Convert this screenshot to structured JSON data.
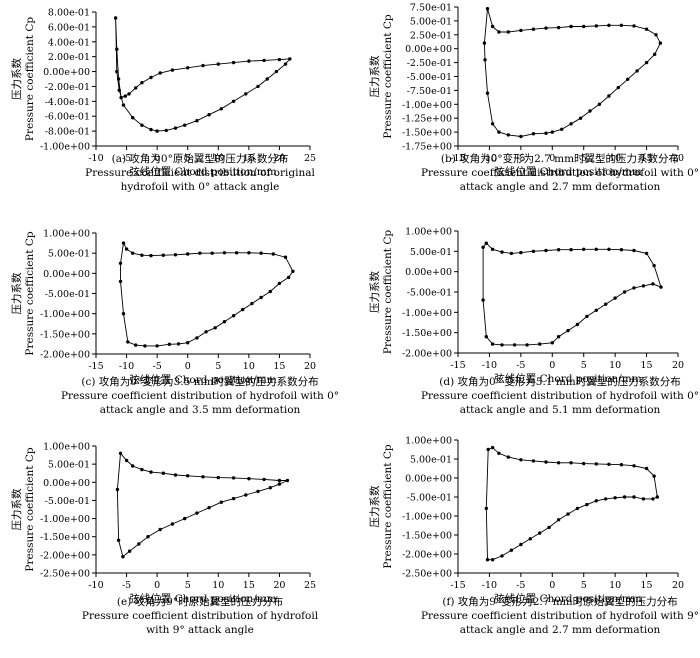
{
  "chart_data": [
    {
      "id": "a",
      "type": "scatter",
      "xlabel": "弦线位置 Chord position/mm",
      "ylabel_cn": "压力系数",
      "ylabel_en": "Pressure coefficient Cp",
      "xlim": [
        -10,
        25
      ],
      "ylim": [
        -1.0,
        0.8
      ],
      "x_ticks": [
        "-10",
        "-5",
        "0",
        "5",
        "10",
        "15",
        "20",
        "25"
      ],
      "y_ticks": [
        "8.00e-01",
        "6.00e-01",
        "4.00e-01",
        "2.00e-01",
        "0.00e+00",
        "-2.00e-01",
        "-4.00e-01",
        "-6.00e-01",
        "-8.00e-01",
        "-1.00e+00"
      ],
      "caption": [
        "(a) 攻角为0°原始翼型的压力系数分布",
        "Pressure coefficient distribution of original",
        "hydrofoil with 0° attack angle"
      ],
      "x": [
        -6.8,
        -6.6,
        -6.3,
        -5.9,
        -5.2,
        -4.6,
        -3.5,
        -2.5,
        -1.0,
        0.5,
        2.5,
        5.0,
        7.5,
        10.0,
        12.5,
        15.0,
        17.5,
        20.0,
        21.7,
        21.0,
        19.5,
        18.0,
        16.5,
        14.5,
        12.5,
        10.5,
        8.5,
        6.5,
        4.5,
        3.0,
        1.5,
        0.0,
        -1.0,
        -2.5,
        -4.0,
        -5.5,
        -6.2,
        -6.6
      ],
      "y": [
        0.72,
        0.3,
        -0.1,
        -0.35,
        -0.33,
        -0.3,
        -0.22,
        -0.15,
        -0.08,
        -0.02,
        0.02,
        0.05,
        0.08,
        0.1,
        0.12,
        0.14,
        0.15,
        0.16,
        0.17,
        0.1,
        0.0,
        -0.1,
        -0.2,
        -0.3,
        -0.4,
        -0.5,
        -0.58,
        -0.66,
        -0.72,
        -0.76,
        -0.79,
        -0.8,
        -0.78,
        -0.72,
        -0.62,
        -0.45,
        -0.25,
        0.0
      ]
    },
    {
      "id": "b",
      "type": "scatter",
      "xlabel": "弦线位置 Chord position/mm",
      "ylabel_cn": "压力系数",
      "ylabel_en": "Pressure coefficient Cp",
      "xlim": [
        -15,
        20
      ],
      "ylim": [
        -1.75,
        0.75
      ],
      "x_ticks": [
        "-15",
        "-10",
        "-5",
        "0",
        "5",
        "10",
        "15",
        "20"
      ],
      "y_ticks": [
        "7.50e-01",
        "5.00e-01",
        "2.50e-01",
        "0.00e+00",
        "-2.50e-01",
        "-5.00e-01",
        "-7.50e-01",
        "-1.00e+00",
        "-1.25e+00",
        "-1.50e+00",
        "-1.75e+00"
      ],
      "caption": [
        "(b) 攻角为0°变形为2.7 mm时翼型的压力系数分布",
        "Pressure coefficient distribution of hydrofoil with 0°",
        "attack angle and 2.7 mm deformation"
      ],
      "x": [
        -10.8,
        -10.3,
        -9.5,
        -8.5,
        -7.0,
        -5.0,
        -3.0,
        -1.0,
        1.0,
        3.0,
        5.0,
        7.0,
        9.0,
        11.0,
        13.0,
        15.0,
        16.5,
        17.2,
        16.3,
        15.0,
        13.5,
        12.0,
        10.5,
        9.0,
        7.5,
        6.0,
        4.5,
        3.0,
        1.5,
        0.0,
        -1.0,
        -3.0,
        -5.0,
        -7.0,
        -8.5,
        -9.5,
        -10.3,
        -10.7
      ],
      "y": [
        0.1,
        0.72,
        0.4,
        0.3,
        0.3,
        0.33,
        0.35,
        0.37,
        0.38,
        0.4,
        0.4,
        0.41,
        0.42,
        0.42,
        0.41,
        0.35,
        0.25,
        0.1,
        -0.1,
        -0.25,
        -0.4,
        -0.55,
        -0.7,
        -0.85,
        -1.0,
        -1.12,
        -1.25,
        -1.35,
        -1.45,
        -1.5,
        -1.52,
        -1.53,
        -1.58,
        -1.55,
        -1.5,
        -1.35,
        -0.8,
        -0.2
      ]
    },
    {
      "id": "c",
      "type": "scatter",
      "xlabel": "弦线位置 Chord position/mm",
      "ylabel_cn": "压力系数",
      "ylabel_en": "Pressure coefficient Cp",
      "xlim": [
        -15,
        20
      ],
      "ylim": [
        -2.0,
        1.0
      ],
      "x_ticks": [
        "-15",
        "-10",
        "-5",
        "0",
        "5",
        "10",
        "15",
        "20"
      ],
      "y_ticks": [
        "1.00e+00",
        "5.00e-01",
        "0.00e+00",
        "-5.00e-01",
        "-1.00e+00",
        "-1.50e+00",
        "-2.00e+00"
      ],
      "caption": [
        "(c) 攻角为0°变形为3.5 mm时翼型的压力系数分布",
        "Pressure coefficient distribution of hydrofoil with 0°",
        "attack angle and 3.5 mm deformation"
      ],
      "x": [
        -11.0,
        -10.5,
        -10.0,
        -9.0,
        -7.5,
        -6.0,
        -4.0,
        -2.0,
        0.0,
        2.0,
        4.0,
        6.0,
        8.0,
        10.0,
        12.0,
        14.0,
        16.0,
        17.2,
        16.5,
        15.0,
        13.5,
        12.0,
        10.5,
        9.0,
        7.5,
        6.0,
        4.5,
        3.0,
        1.5,
        0.0,
        -1.5,
        -3.0,
        -5.0,
        -7.0,
        -8.5,
        -9.8,
        -10.5,
        -11.0
      ],
      "y": [
        0.25,
        0.75,
        0.6,
        0.5,
        0.45,
        0.44,
        0.45,
        0.46,
        0.48,
        0.5,
        0.5,
        0.51,
        0.51,
        0.51,
        0.5,
        0.48,
        0.4,
        0.05,
        -0.1,
        -0.25,
        -0.45,
        -0.6,
        -0.75,
        -0.9,
        -1.05,
        -1.2,
        -1.35,
        -1.45,
        -1.6,
        -1.72,
        -1.75,
        -1.76,
        -1.8,
        -1.8,
        -1.78,
        -1.7,
        -1.0,
        -0.2
      ]
    },
    {
      "id": "d",
      "type": "scatter",
      "xlabel": "弦线位置 Chord position/mm",
      "ylabel_cn": "压力系数",
      "ylabel_en": "Pressure coefficient Cp",
      "xlim": [
        -15,
        20
      ],
      "ylim": [
        -2.0,
        1.0
      ],
      "x_ticks": [
        "-15",
        "-10",
        "-5",
        "0",
        "5",
        "10",
        "15",
        "20"
      ],
      "y_ticks": [
        "1.00e+00",
        "5.00e-01",
        "0.00e+00",
        "-5.00e-01",
        "-1.00e+00",
        "-1.50e+00",
        "-2.00e+00"
      ],
      "caption": [
        "(d) 攻角为0°  变形为5.1 mm时翼型的压力系数分布",
        "Pressure coefficient distribution of hydrofoil with 0°",
        "attack angle and 5.1 mm deformation"
      ],
      "x": [
        -11.0,
        -10.5,
        -9.5,
        -8.0,
        -6.5,
        -5.0,
        -3.0,
        -1.0,
        1.0,
        3.0,
        5.0,
        7.0,
        9.0,
        11.0,
        13.0,
        15.0,
        16.2,
        17.3,
        16.0,
        14.5,
        13.0,
        11.5,
        10.0,
        8.5,
        7.0,
        5.5,
        4.0,
        2.5,
        1.0,
        0.0,
        -2.0,
        -4.0,
        -6.0,
        -8.0,
        -9.5,
        -10.5,
        -11.0
      ],
      "y": [
        0.6,
        0.7,
        0.55,
        0.48,
        0.45,
        0.47,
        0.5,
        0.52,
        0.54,
        0.54,
        0.55,
        0.55,
        0.55,
        0.54,
        0.52,
        0.45,
        0.15,
        -0.38,
        -0.3,
        -0.35,
        -0.4,
        -0.5,
        -0.65,
        -0.8,
        -0.95,
        -1.1,
        -1.3,
        -1.45,
        -1.6,
        -1.75,
        -1.78,
        -1.8,
        -1.8,
        -1.8,
        -1.78,
        -1.6,
        -0.7
      ]
    },
    {
      "id": "e",
      "type": "scatter",
      "xlabel": "弦线位置 Chord position/mm",
      "ylabel_cn": "压力系数",
      "ylabel_en": "Pressure coefficient Cp",
      "xlim": [
        -10,
        25
      ],
      "ylim": [
        -2.5,
        1.0
      ],
      "x_ticks": [
        "-10",
        "-5",
        "0",
        "5",
        "10",
        "15",
        "20",
        "25"
      ],
      "y_ticks": [
        "1.00e+00",
        "5.00e-01",
        "0.00e+00",
        "-5.00e-01",
        "-1.00e+00",
        "-1.50e+00",
        "-2.00e+00",
        "-2.50e+00"
      ],
      "caption": [
        "(e) 攻角为9°时原始翼型的压力分布",
        "Pressure coefficient distribution of hydrofoil",
        "with 9° attack angle"
      ],
      "x": [
        -6.5,
        -6.0,
        -5.0,
        -4.0,
        -2.5,
        -1.0,
        1.0,
        3.0,
        5.0,
        7.5,
        10.0,
        12.5,
        15.0,
        17.5,
        20.0,
        21.3,
        20.0,
        18.5,
        16.5,
        14.5,
        12.5,
        10.5,
        8.5,
        6.5,
        4.5,
        2.5,
        0.5,
        -1.5,
        -3.0,
        -4.5,
        -5.6,
        -6.3
      ],
      "y": [
        -0.2,
        0.8,
        0.6,
        0.45,
        0.35,
        0.28,
        0.25,
        0.2,
        0.18,
        0.15,
        0.13,
        0.12,
        0.1,
        0.08,
        0.05,
        0.05,
        -0.05,
        -0.15,
        -0.25,
        -0.35,
        -0.45,
        -0.55,
        -0.7,
        -0.85,
        -1.0,
        -1.15,
        -1.3,
        -1.5,
        -1.7,
        -1.9,
        -2.05,
        -1.6
      ]
    },
    {
      "id": "f",
      "type": "scatter",
      "xlabel": "弦线位置 Chord position/mm",
      "ylabel_cn": "压力系数",
      "ylabel_en": "Pressure coefficient Cp",
      "xlim": [
        -15,
        20
      ],
      "ylim": [
        -2.5,
        1.0
      ],
      "x_ticks": [
        "-15",
        "-10",
        "-5",
        "0",
        "5",
        "10",
        "15",
        "20"
      ],
      "y_ticks": [
        "1.00e+00",
        "5.00e-01",
        "0.00e+00",
        "-5.00e-01",
        "-1.00e+00",
        "-1.50e+00",
        "-2.00e+00",
        "-2.50e+00"
      ],
      "caption": [
        "(f) 攻角为9°变形为2.7 mm时原始翼型的压力分布",
        "Pressure coefficient distribution of hydrofoil with 9°",
        "attack angle and 2.7 mm deformation"
      ],
      "x": [
        -10.5,
        -10.2,
        -9.5,
        -8.5,
        -7.0,
        -5.0,
        -3.0,
        -1.0,
        1.0,
        3.0,
        5.0,
        7.0,
        9.0,
        11.0,
        13.0,
        15.0,
        16.2,
        16.7,
        16.0,
        14.5,
        13.0,
        11.5,
        10.0,
        8.5,
        7.0,
        5.5,
        4.0,
        2.5,
        1.0,
        -0.5,
        -2.0,
        -3.5,
        -5.0,
        -6.5,
        -8.0,
        -9.5,
        -10.3
      ],
      "y": [
        -0.8,
        0.75,
        0.8,
        0.65,
        0.55,
        0.48,
        0.45,
        0.42,
        0.4,
        0.4,
        0.38,
        0.37,
        0.36,
        0.35,
        0.32,
        0.25,
        0.05,
        -0.5,
        -0.55,
        -0.55,
        -0.5,
        -0.5,
        -0.52,
        -0.55,
        -0.6,
        -0.7,
        -0.8,
        -0.95,
        -1.1,
        -1.3,
        -1.45,
        -1.6,
        -1.75,
        -1.9,
        -2.05,
        -2.15,
        -2.15
      ]
    }
  ]
}
